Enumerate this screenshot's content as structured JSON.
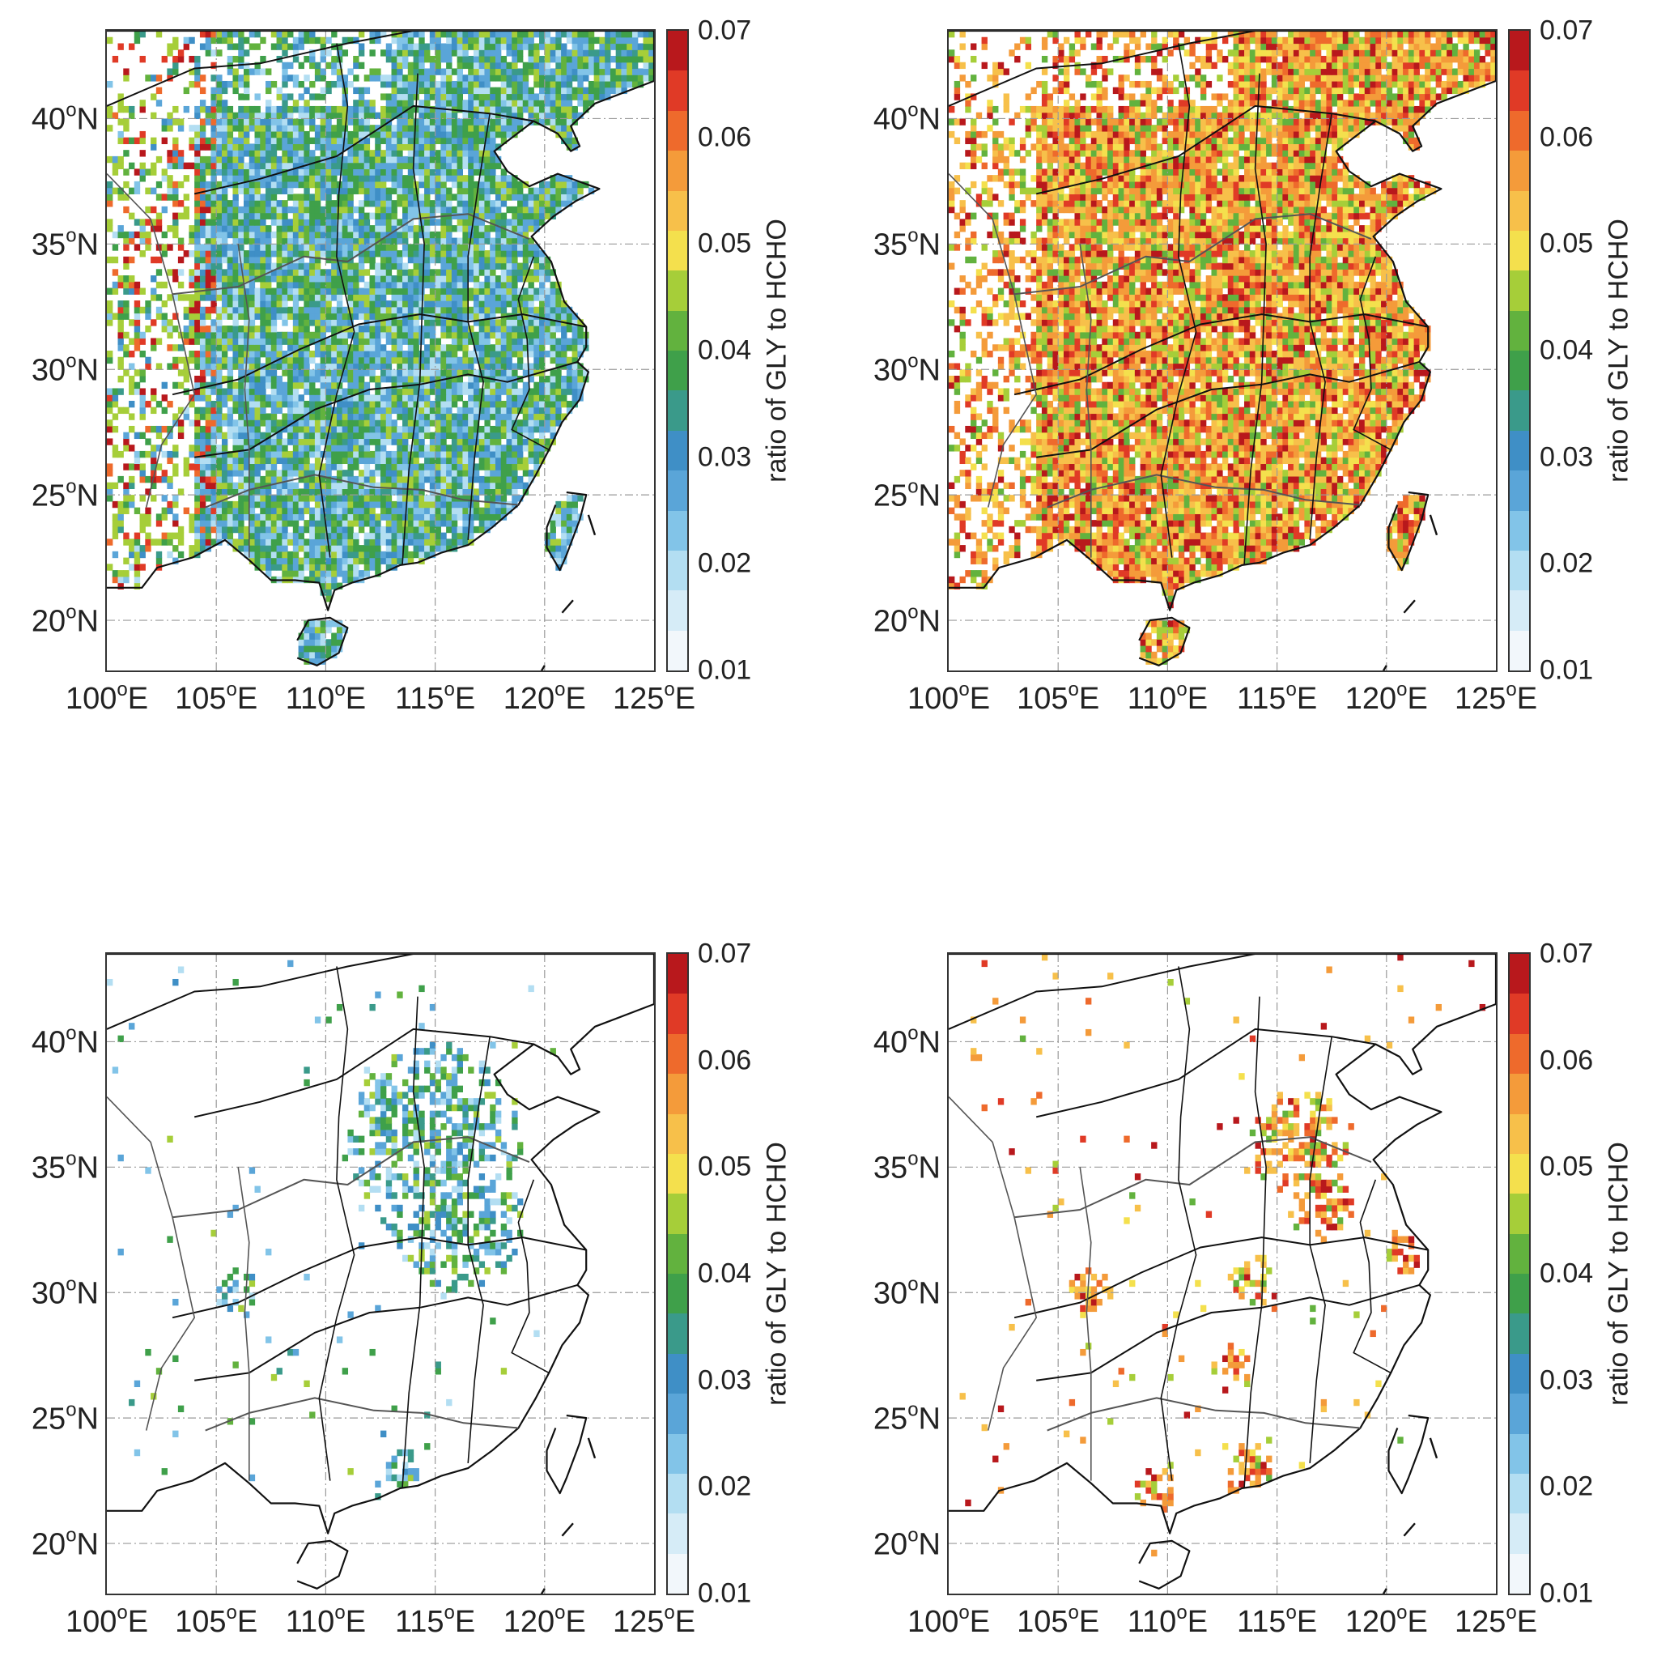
{
  "figure": {
    "panels": [
      {
        "id": "top-left",
        "coverage": "dense",
        "palette": "low"
      },
      {
        "id": "top-right",
        "coverage": "dense",
        "palette": "high"
      },
      {
        "id": "bottom-left",
        "coverage": "sparse",
        "palette": "low"
      },
      {
        "id": "bottom-right",
        "coverage": "sparse",
        "palette": "high"
      }
    ]
  },
  "axes": {
    "lon_ticks": [
      {
        "num": "100",
        "unit": "E"
      },
      {
        "num": "105",
        "unit": "E"
      },
      {
        "num": "110",
        "unit": "E"
      },
      {
        "num": "115",
        "unit": "E"
      },
      {
        "num": "120",
        "unit": "E"
      },
      {
        "num": "125",
        "unit": "E"
      }
    ],
    "lat_ticks": [
      {
        "num": "40",
        "unit": "N"
      },
      {
        "num": "35",
        "unit": "N"
      },
      {
        "num": "30",
        "unit": "N"
      },
      {
        "num": "25",
        "unit": "N"
      },
      {
        "num": "20",
        "unit": "N"
      }
    ],
    "lon_range": [
      100,
      125
    ],
    "lat_range": [
      18,
      43.5
    ],
    "degree_symbol": "o"
  },
  "colorbar": {
    "label": "ratio of GLY to HCHO",
    "range": [
      0.01,
      0.07
    ],
    "ticks": [
      "0.07",
      "0.06",
      "0.05",
      "0.04",
      "0.03",
      "0.02",
      "0.01"
    ],
    "colors": [
      "#f2f7fb",
      "#d6ecf7",
      "#b3def2",
      "#82c4e8",
      "#5aa5d8",
      "#3f8fc6",
      "#3a9a8a",
      "#3fa04a",
      "#62b23e",
      "#a6ce39",
      "#f4e04d",
      "#f7c04a",
      "#f49b3a",
      "#ee6a2c",
      "#e03a26",
      "#b8181c"
    ]
  },
  "chart_data": [
    {
      "type": "heatmap",
      "title": "",
      "colorbar_label": "ratio of GLY to HCHO",
      "xlim": [
        100,
        125
      ],
      "ylim": [
        18,
        43.5
      ],
      "clim": [
        0.01,
        0.07
      ],
      "typical_range": [
        0.02,
        0.035
      ]
    },
    {
      "type": "heatmap",
      "title": "",
      "colorbar_label": "ratio of GLY to HCHO",
      "xlim": [
        100,
        125
      ],
      "ylim": [
        18,
        43.5
      ],
      "clim": [
        0.01,
        0.07
      ],
      "typical_range": [
        0.045,
        0.065
      ]
    },
    {
      "type": "heatmap",
      "title": "",
      "colorbar_label": "ratio of GLY to HCHO",
      "xlim": [
        100,
        125
      ],
      "ylim": [
        18,
        43.5
      ],
      "clim": [
        0.01,
        0.07
      ],
      "typical_range": [
        0.02,
        0.03
      ]
    },
    {
      "type": "heatmap",
      "title": "",
      "colorbar_label": "ratio of GLY to HCHO",
      "xlim": [
        100,
        125
      ],
      "ylim": [
        18,
        43.5
      ],
      "clim": [
        0.01,
        0.07
      ],
      "typical_range": [
        0.045,
        0.065
      ]
    }
  ]
}
